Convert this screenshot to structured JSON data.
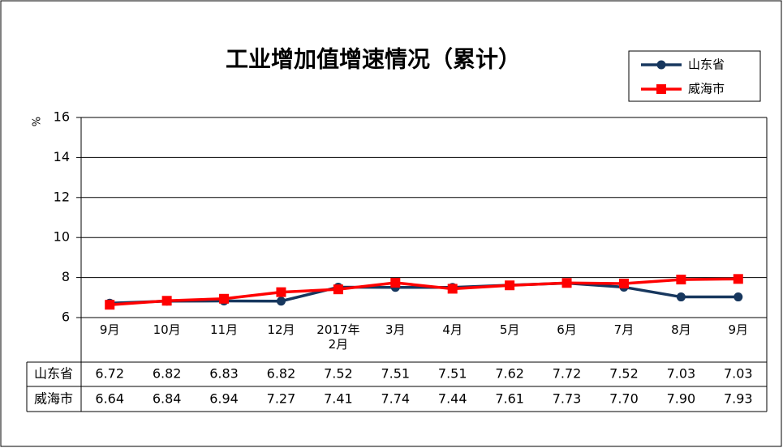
{
  "chart_data": {
    "type": "line",
    "title": "工业增加值增速情况（累计）",
    "y_label": "%",
    "categories": [
      "9月",
      "10月",
      "11月",
      "12月",
      "2017年\n2月",
      "3月",
      "4月",
      "5月",
      "6月",
      "7月",
      "8月",
      "9月"
    ],
    "series": [
      {
        "name": "山东省",
        "color": "#17375e",
        "marker": "circle",
        "values": [
          6.72,
          6.82,
          6.83,
          6.82,
          7.52,
          7.51,
          7.51,
          7.62,
          7.72,
          7.52,
          7.03,
          7.03
        ],
        "value_labels": [
          "6.72",
          "6.82",
          "6.83",
          "6.82",
          "7.52",
          "7.51",
          "7.51",
          "7.62",
          "7.72",
          "7.52",
          "7.03",
          "7.03"
        ]
      },
      {
        "name": "威海市",
        "color": "#ff0000",
        "marker": "square",
        "values": [
          6.64,
          6.84,
          6.94,
          7.27,
          7.41,
          7.74,
          7.44,
          7.61,
          7.73,
          7.7,
          7.9,
          7.93
        ],
        "value_labels": [
          "6.64",
          "6.84",
          "6.94",
          "7.27",
          "7.41",
          "7.74",
          "7.44",
          "7.61",
          "7.73",
          "7.70",
          "7.90",
          "7.93"
        ]
      }
    ],
    "ylim": [
      6,
      16
    ],
    "yticks": [
      6,
      8,
      10,
      12,
      14,
      16
    ],
    "grid": true,
    "legend": "top-right"
  }
}
